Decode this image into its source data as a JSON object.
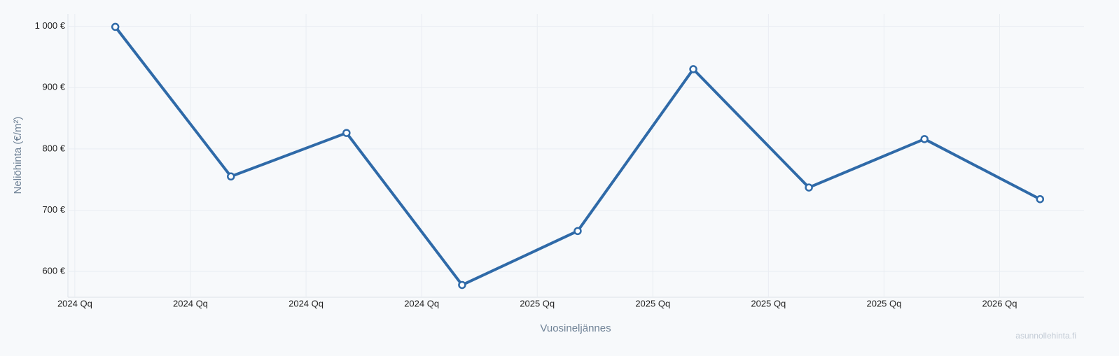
{
  "chart_data": {
    "type": "line",
    "y_label": "Neliöhinta (€/m²)",
    "x_label": "Vuosineljännes",
    "watermark": "asunnollehinta.fi",
    "x": [
      0.35,
      1.35,
      2.35,
      3.35,
      4.35,
      5.35,
      6.35,
      7.35,
      8.35
    ],
    "series": [
      {
        "name": "Neliöhinta",
        "color": "#2f6aa8",
        "values": [
          999,
          755,
          826,
          578,
          666,
          930,
          737,
          816,
          718
        ]
      }
    ],
    "xlim": [
      -0.06,
      8.73
    ],
    "xticks": [
      {
        "value": 0,
        "label": "2024 Qq"
      },
      {
        "value": 1,
        "label": "2024 Qq"
      },
      {
        "value": 2,
        "label": "2024 Qq"
      },
      {
        "value": 3,
        "label": "2024 Qq"
      },
      {
        "value": 4,
        "label": "2025 Qq"
      },
      {
        "value": 5,
        "label": "2025 Qq"
      },
      {
        "value": 6,
        "label": "2025 Qq"
      },
      {
        "value": 7,
        "label": "2025 Qq"
      },
      {
        "value": 8,
        "label": "2026 Qq"
      }
    ],
    "ylim": [
      558,
      1020
    ],
    "yticks": [
      {
        "value": 600,
        "label": "600 €"
      },
      {
        "value": 700,
        "label": "700 €"
      },
      {
        "value": 800,
        "label": "800 €"
      },
      {
        "value": 900,
        "label": "900 €"
      },
      {
        "value": 1000,
        "label": "1 000 €"
      }
    ],
    "grid": true
  }
}
